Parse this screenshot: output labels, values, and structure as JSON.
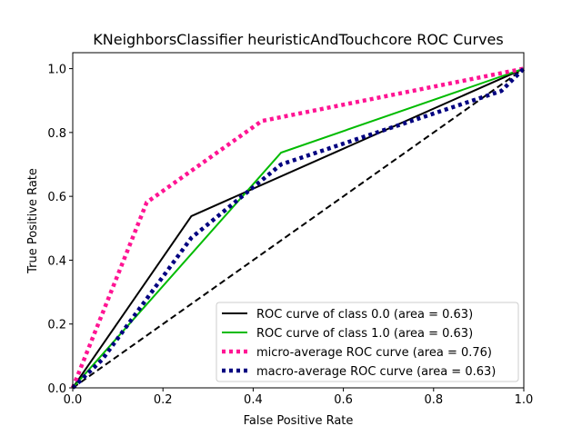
{
  "chart_data": {
    "type": "line",
    "title": "KNeighborsClassifier heuristicAndTouchcore ROC Curves",
    "xlabel": "False Positive Rate",
    "ylabel": "True Positive Rate",
    "xlim": [
      0.0,
      1.0
    ],
    "ylim": [
      0.0,
      1.05
    ],
    "xticks": [
      "0.0",
      "0.2",
      "0.4",
      "0.6",
      "0.8",
      "1.0"
    ],
    "yticks": [
      "0.0",
      "0.2",
      "0.4",
      "0.6",
      "0.8",
      "1.0"
    ],
    "grid": false,
    "legend_position": "lower-right",
    "series": [
      {
        "name": "ROC curve of class 0.0 (area = 0.63)",
        "color": "#000000",
        "style": "solid",
        "x": [
          0.0,
          0.263,
          1.0
        ],
        "y": [
          0.0,
          0.538,
          1.0
        ]
      },
      {
        "name": "ROC curve of class 1.0 (area = 0.63)",
        "color": "#00bb00",
        "style": "solid",
        "x": [
          0.0,
          0.462,
          1.0
        ],
        "y": [
          0.0,
          0.737,
          1.0
        ]
      },
      {
        "name": "micro-average ROC curve (area = 0.76)",
        "color": "#ff1493",
        "style": "dotted",
        "x": [
          0.0,
          0.164,
          0.419,
          1.0
        ],
        "y": [
          0.0,
          0.581,
          0.836,
          1.0
        ]
      },
      {
        "name": "macro-average ROC curve (area = 0.63)",
        "color": "#000080",
        "style": "dotted",
        "x": [
          0.0,
          0.065,
          0.263,
          0.462,
          0.95,
          1.0
        ],
        "y": [
          0.0,
          0.088,
          0.47,
          0.7,
          0.93,
          1.0
        ]
      }
    ],
    "reference_line": {
      "x": [
        0.0,
        1.0
      ],
      "y": [
        0.0,
        1.0
      ],
      "color": "#000000",
      "style": "dashed"
    }
  }
}
